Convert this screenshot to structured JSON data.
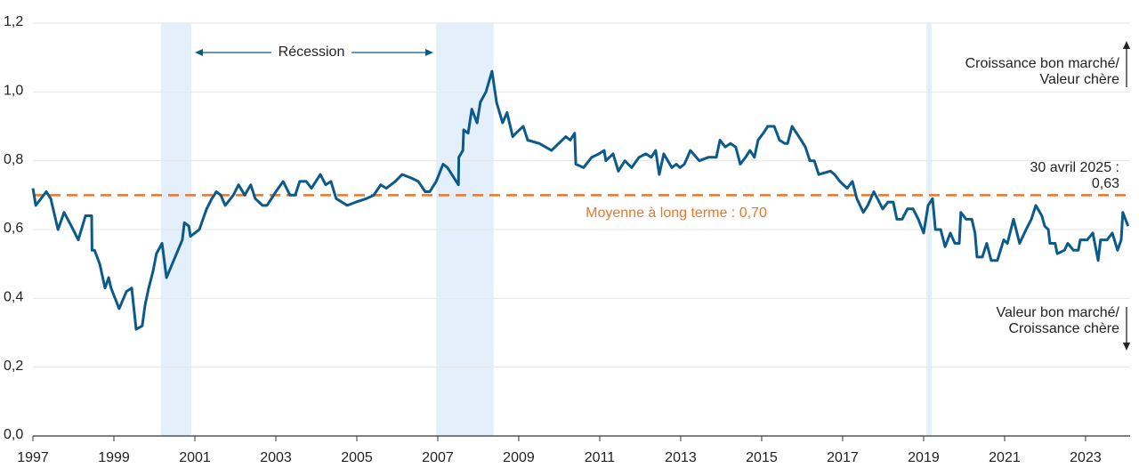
{
  "chart_data": {
    "type": "line",
    "x": [
      1997.0,
      1997.07,
      1997.33,
      1997.44,
      1997.62,
      1997.77,
      1997.95,
      1998.12,
      1998.3,
      1998.45,
      1998.46,
      1998.52,
      1998.65,
      1998.78,
      1998.87,
      1998.93,
      1999.13,
      1999.31,
      1999.44,
      1999.55,
      1999.7,
      1999.77,
      1999.86,
      1999.97,
      2000.05,
      2000.19,
      2000.3,
      2000.69,
      2000.74,
      2000.85,
      2000.89,
      2001.11,
      2001.29,
      2001.42,
      2001.53,
      2001.64,
      2001.75,
      2001.95,
      2002.08,
      2002.23,
      2002.38,
      2002.49,
      2002.67,
      2002.78,
      2003.0,
      2003.18,
      2003.35,
      2003.48,
      2003.59,
      2003.75,
      2003.88,
      2004.1,
      2004.23,
      2004.36,
      2004.49,
      2004.76,
      2004.98,
      2005.24,
      2005.42,
      2005.59,
      2005.73,
      2005.95,
      2006.12,
      2006.34,
      2006.52,
      2006.69,
      2006.8,
      2006.96,
      2007.13,
      2007.24,
      2007.51,
      2007.52,
      2007.62,
      2007.64,
      2007.75,
      2007.84,
      2007.97,
      2008.05,
      2008.19,
      2008.34,
      2008.45,
      2008.6,
      2008.71,
      2008.85,
      2008.93,
      2009.11,
      2009.22,
      2009.51,
      2009.81,
      2010.16,
      2010.27,
      2010.38,
      2010.41,
      2010.6,
      2010.8,
      2010.98,
      2011.11,
      2011.15,
      2011.33,
      2011.46,
      2011.62,
      2011.79,
      2011.97,
      2012.14,
      2012.27,
      2012.38,
      2012.47,
      2012.58,
      2012.78,
      2012.89,
      2012.98,
      2013.09,
      2013.24,
      2013.46,
      2013.68,
      2013.88,
      2013.97,
      2014.1,
      2014.23,
      2014.36,
      2014.47,
      2014.6,
      2014.71,
      2014.82,
      2014.91,
      2015.04,
      2015.15,
      2015.31,
      2015.44,
      2015.57,
      2015.64,
      2015.75,
      2015.92,
      2016.08,
      2016.19,
      2016.3,
      2016.41,
      2016.7,
      2016.8,
      2016.93,
      2017.11,
      2017.24,
      2017.35,
      2017.51,
      2017.62,
      2017.77,
      2017.86,
      2017.99,
      2018.12,
      2018.25,
      2018.34,
      2018.47,
      2018.6,
      2018.74,
      2018.87,
      2019.0,
      2019.11,
      2019.22,
      2019.29,
      2019.42,
      2019.53,
      2019.66,
      2019.77,
      2019.88,
      2019.92,
      2020.05,
      2020.19,
      2020.27,
      2020.32,
      2020.45,
      2020.56,
      2020.67,
      2020.82,
      2020.98,
      2021.07,
      2021.22,
      2021.37,
      2021.53,
      2021.66,
      2021.77,
      2021.92,
      2021.99,
      2022.08,
      2022.12,
      2022.25,
      2022.3,
      2022.48,
      2022.56,
      2022.7,
      2022.82,
      2022.87,
      2023.04,
      2023.18,
      2023.31,
      2023.37,
      2023.53,
      2023.66,
      2023.79,
      2023.88,
      2023.92,
      2024.05
    ],
    "values": [
      0.72,
      0.67,
      0.71,
      0.69,
      0.6,
      0.65,
      0.61,
      0.57,
      0.64,
      0.64,
      0.54,
      0.54,
      0.5,
      0.43,
      0.46,
      0.43,
      0.37,
      0.42,
      0.43,
      0.31,
      0.32,
      0.38,
      0.43,
      0.48,
      0.53,
      0.56,
      0.46,
      0.57,
      0.62,
      0.61,
      0.58,
      0.6,
      0.66,
      0.69,
      0.71,
      0.7,
      0.67,
      0.7,
      0.73,
      0.7,
      0.73,
      0.69,
      0.67,
      0.67,
      0.71,
      0.74,
      0.7,
      0.7,
      0.74,
      0.74,
      0.72,
      0.76,
      0.73,
      0.74,
      0.69,
      0.67,
      0.68,
      0.69,
      0.7,
      0.73,
      0.72,
      0.74,
      0.76,
      0.75,
      0.74,
      0.71,
      0.71,
      0.74,
      0.79,
      0.78,
      0.73,
      0.81,
      0.83,
      0.89,
      0.88,
      0.95,
      0.91,
      0.97,
      1.0,
      1.06,
      0.97,
      0.91,
      0.94,
      0.87,
      0.88,
      0.9,
      0.86,
      0.85,
      0.83,
      0.87,
      0.86,
      0.88,
      0.79,
      0.78,
      0.81,
      0.82,
      0.83,
      0.8,
      0.82,
      0.77,
      0.8,
      0.78,
      0.81,
      0.82,
      0.81,
      0.83,
      0.76,
      0.82,
      0.78,
      0.79,
      0.78,
      0.79,
      0.83,
      0.8,
      0.81,
      0.81,
      0.86,
      0.84,
      0.85,
      0.84,
      0.79,
      0.81,
      0.83,
      0.81,
      0.86,
      0.88,
      0.9,
      0.9,
      0.86,
      0.85,
      0.85,
      0.9,
      0.87,
      0.84,
      0.8,
      0.8,
      0.76,
      0.77,
      0.76,
      0.74,
      0.72,
      0.74,
      0.69,
      0.65,
      0.67,
      0.71,
      0.69,
      0.66,
      0.68,
      0.68,
      0.63,
      0.63,
      0.66,
      0.66,
      0.63,
      0.59,
      0.67,
      0.69,
      0.6,
      0.6,
      0.55,
      0.59,
      0.56,
      0.56,
      0.65,
      0.63,
      0.63,
      0.59,
      0.52,
      0.52,
      0.56,
      0.51,
      0.51,
      0.57,
      0.56,
      0.63,
      0.56,
      0.6,
      0.63,
      0.67,
      0.64,
      0.61,
      0.6,
      0.56,
      0.56,
      0.53,
      0.54,
      0.56,
      0.54,
      0.54,
      0.57,
      0.57,
      0.59,
      0.51,
      0.57,
      0.57,
      0.59,
      0.54,
      0.57,
      0.65,
      0.61
    ],
    "color": "#0b5a8a",
    "xlim": [
      1997,
      2024.1
    ],
    "xticks": [
      1997,
      1999,
      2001,
      2003,
      2005,
      2007,
      2009,
      2011,
      2013,
      2015,
      2017,
      2019,
      2021,
      2023
    ],
    "ylim": [
      0,
      1.2
    ],
    "yticks": [
      {
        "value": 0,
        "label": "0,0"
      },
      {
        "value": 0.2,
        "label": "0,2"
      },
      {
        "value": 0.4,
        "label": "0,4"
      },
      {
        "value": 0.6,
        "label": "0,6"
      },
      {
        "value": 0.8,
        "label": "0,8"
      },
      {
        "value": 1.0,
        "label": "1,0"
      },
      {
        "value": 1.2,
        "label": "1,2"
      }
    ],
    "grid": true,
    "recessions": [
      [
        2000.16,
        2000.91
      ],
      [
        2006.96,
        2008.38
      ],
      [
        2019.07,
        2019.2
      ]
    ],
    "recession_color": "#e3f0fb",
    "recession_label": "Récession",
    "mean": 0.7,
    "mean_color": "#e8772e",
    "mean_label": "Moyenne à long terme : 0,70",
    "latest_label": [
      "30 avril 2025 :",
      "0,63"
    ],
    "upper_label": [
      "Croissance bon marché/",
      "Valeur chère"
    ],
    "lower_label": [
      "Valeur bon marché/",
      "Croissance chère"
    ]
  }
}
